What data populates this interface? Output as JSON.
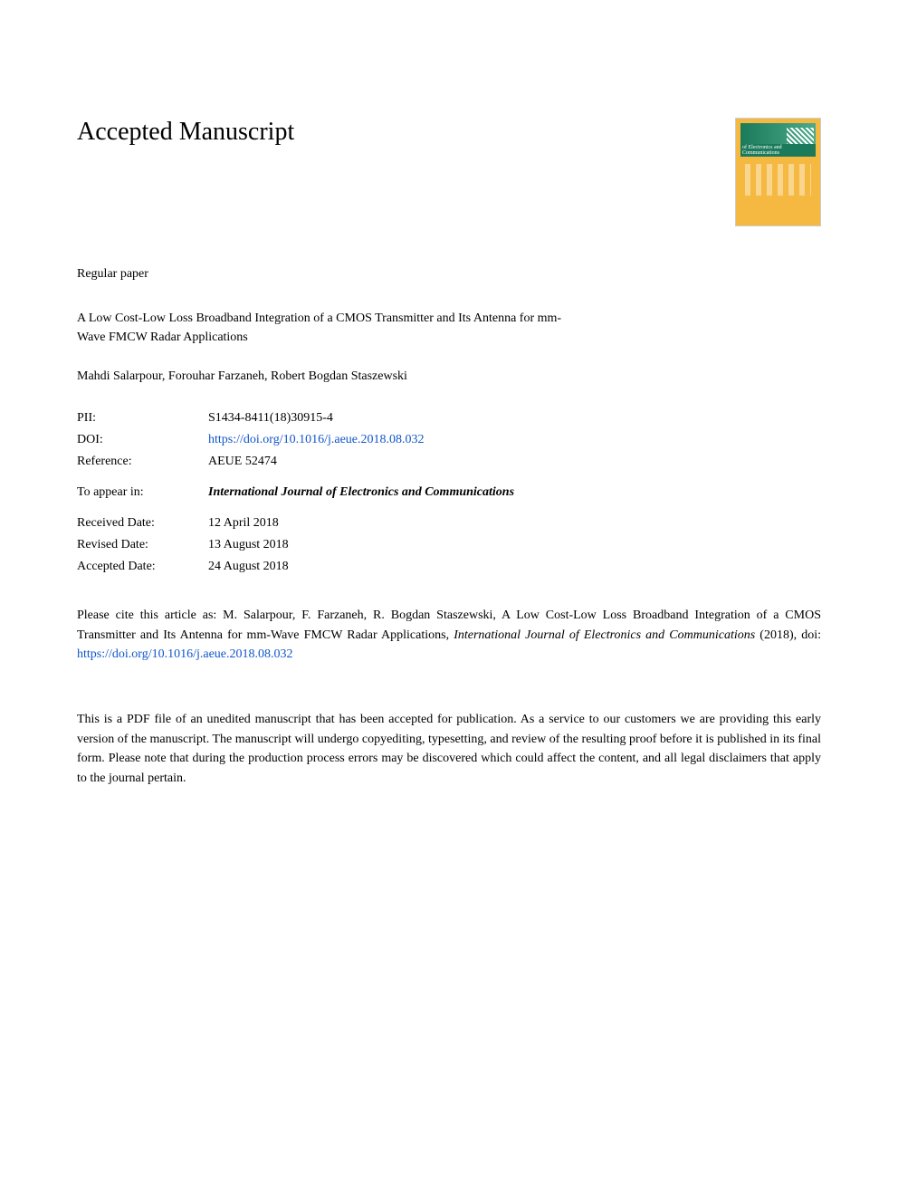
{
  "header": {
    "heading": "Accepted Manuscript",
    "journal_cover_title": "of Electronics and Communications"
  },
  "paper": {
    "type": "Regular paper",
    "title": "A Low Cost-Low Loss Broadband Integration of a CMOS Transmitter and Its Antenna for mm-Wave FMCW Radar Applications",
    "authors": "Mahdi Salarpour, Forouhar Farzaneh, Robert Bogdan Staszewski"
  },
  "metadata": {
    "pii_label": "PII:",
    "pii_value": "S1434-8411(18)30915-4",
    "doi_label": "DOI:",
    "doi_value": "https://doi.org/10.1016/j.aeue.2018.08.032",
    "reference_label": "Reference:",
    "reference_value": "AEUE 52474",
    "appear_label": "To appear in:",
    "appear_value": "International Journal of Electronics and Communications",
    "received_label": "Received Date:",
    "received_value": "12 April 2018",
    "revised_label": "Revised Date:",
    "revised_value": "13 August 2018",
    "accepted_label": "Accepted Date:",
    "accepted_value": "24 August 2018"
  },
  "citation": {
    "prefix": "Please cite this article as: M. Salarpour, F. Farzaneh, R. Bogdan Staszewski, A Low Cost-Low Loss Broadband Integration of a CMOS Transmitter and Its Antenna for mm-Wave FMCW Radar Applications, ",
    "journal": "International Journal of Electronics and Communications",
    "year": " (2018), doi: ",
    "doi": "https://doi.org/10.1016/j.aeue.2018.08.032"
  },
  "disclaimer": {
    "text": "This is a PDF file of an unedited manuscript that has been accepted for publication. As a service to our customers we are providing this early version of the manuscript. The manuscript will undergo copyediting, typesetting, and review of the resulting proof before it is published in its final form. Please note that during the production process errors may be discovered which could affect the content, and all legal disclaimers that apply to the journal pertain."
  },
  "colors": {
    "link": "#1155cc",
    "text": "#000000",
    "background": "#ffffff"
  }
}
